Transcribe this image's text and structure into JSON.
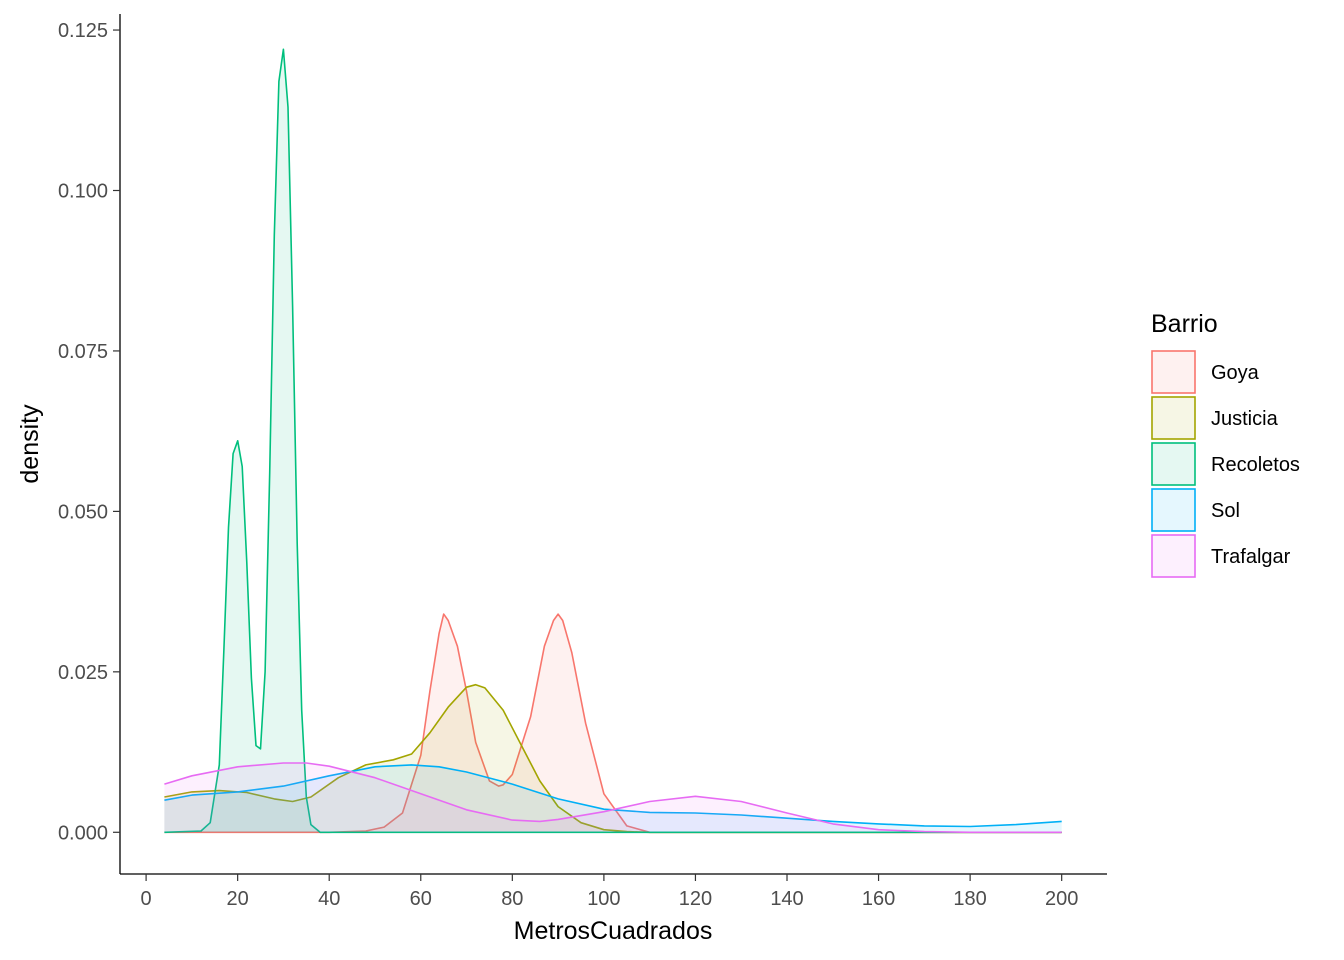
{
  "chart_data": {
    "type": "area",
    "xlabel": "MetrosCuadrados",
    "ylabel": "density",
    "xlim": [
      -5.7,
      209.9
    ],
    "ylim": [
      -0.0065,
      0.1275
    ],
    "x_ticks": [
      0,
      20,
      40,
      60,
      80,
      100,
      120,
      140,
      160,
      180,
      200
    ],
    "y_ticks": [
      0.0,
      0.025,
      0.05,
      0.075,
      0.1,
      0.125
    ],
    "x_tick_labels": [
      "0",
      "20",
      "40",
      "60",
      "80",
      "100",
      "120",
      "140",
      "160",
      "180",
      "200"
    ],
    "y_tick_labels": [
      "0.000",
      "0.025",
      "0.050",
      "0.075",
      "0.100",
      "0.125"
    ],
    "grid": false,
    "legend": {
      "title": "Barrio",
      "position": "right",
      "labels": [
        "Goya",
        "Justicia",
        "Recoletos",
        "Sol",
        "Trafalgar"
      ]
    },
    "series": [
      {
        "name": "Goya",
        "color": "#F8766D",
        "x": [
          4,
          40,
          48,
          52,
          56,
          60,
          62,
          64,
          65,
          66,
          68,
          70,
          72,
          75,
          77,
          78,
          80,
          84,
          87,
          89,
          90,
          91,
          93,
          96,
          100,
          105,
          110,
          200
        ],
        "y": [
          0,
          0,
          0.0002,
          0.0008,
          0.003,
          0.012,
          0.022,
          0.031,
          0.034,
          0.033,
          0.029,
          0.022,
          0.014,
          0.008,
          0.0072,
          0.0074,
          0.009,
          0.018,
          0.029,
          0.033,
          0.034,
          0.033,
          0.028,
          0.017,
          0.006,
          0.001,
          0,
          0
        ]
      },
      {
        "name": "Justicia",
        "color": "#A3A500",
        "x": [
          4,
          10,
          16,
          22,
          28,
          32,
          36,
          42,
          48,
          54,
          58,
          62,
          66,
          70,
          72,
          74,
          78,
          82,
          86,
          90,
          95,
          100,
          105,
          110,
          200
        ],
        "y": [
          0.0055,
          0.0063,
          0.0065,
          0.0062,
          0.0052,
          0.0048,
          0.0055,
          0.0085,
          0.0105,
          0.0113,
          0.0122,
          0.0155,
          0.0195,
          0.0226,
          0.023,
          0.0225,
          0.019,
          0.0135,
          0.008,
          0.004,
          0.0015,
          0.0004,
          0.0001,
          0,
          0
        ]
      },
      {
        "name": "Recoletos",
        "color": "#00BF7D",
        "x": [
          4,
          12,
          14,
          16,
          17,
          18,
          19,
          20,
          21,
          22,
          23,
          24,
          25,
          26,
          27,
          28,
          29,
          30,
          31,
          32,
          33,
          34,
          35,
          36,
          38,
          200
        ],
        "y": [
          0,
          0.0002,
          0.0015,
          0.0105,
          0.0285,
          0.0475,
          0.059,
          0.061,
          0.057,
          0.042,
          0.024,
          0.0135,
          0.013,
          0.025,
          0.056,
          0.093,
          0.117,
          0.122,
          0.113,
          0.082,
          0.045,
          0.019,
          0.0055,
          0.0012,
          0,
          0
        ]
      },
      {
        "name": "Sol",
        "color": "#00B0F6",
        "x": [
          4,
          10,
          20,
          30,
          40,
          50,
          58,
          64,
          70,
          80,
          90,
          100,
          110,
          120,
          130,
          140,
          150,
          160,
          170,
          180,
          190,
          200
        ],
        "y": [
          0.005,
          0.0058,
          0.0063,
          0.0072,
          0.0088,
          0.0102,
          0.0105,
          0.0102,
          0.0094,
          0.0075,
          0.0052,
          0.0036,
          0.0031,
          0.003,
          0.0027,
          0.0022,
          0.0017,
          0.0013,
          0.001,
          0.0009,
          0.0012,
          0.0017
        ]
      },
      {
        "name": "Trafalgar",
        "color": "#E76BF3",
        "x": [
          4,
          10,
          20,
          30,
          35,
          40,
          50,
          60,
          70,
          80,
          86,
          90,
          100,
          110,
          120,
          130,
          140,
          150,
          160,
          170,
          180,
          190,
          200
        ],
        "y": [
          0.0075,
          0.0088,
          0.0102,
          0.0108,
          0.0108,
          0.0103,
          0.0085,
          0.006,
          0.0035,
          0.0019,
          0.0017,
          0.002,
          0.0032,
          0.0048,
          0.0056,
          0.0048,
          0.003,
          0.0013,
          0.0004,
          0.0001,
          0,
          0,
          0
        ]
      }
    ]
  }
}
